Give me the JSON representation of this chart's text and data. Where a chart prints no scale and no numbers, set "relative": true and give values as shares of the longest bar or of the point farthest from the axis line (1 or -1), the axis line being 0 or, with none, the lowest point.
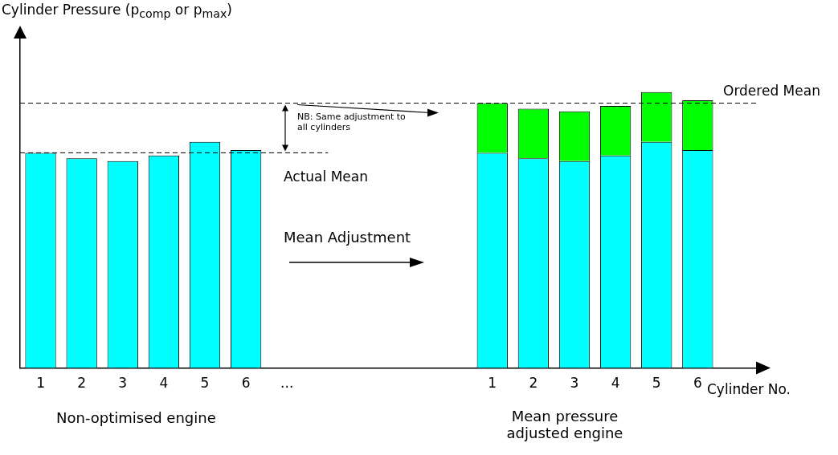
{
  "chart_data": {
    "type": "bar",
    "relative": true,
    "stacked": true,
    "xlabel": "Cylinder No.",
    "categories": [
      "1",
      "2",
      "3",
      "4",
      "5",
      "6",
      "...",
      null,
      null,
      null,
      null,
      "1",
      "2",
      "3",
      "4",
      "5",
      "6",
      "..."
    ],
    "series": [
      {
        "color": "#00ffff",
        "values": [
          0.78,
          0.76,
          0.75,
          0.77,
          0.82,
          0.79,
          null,
          null,
          null,
          null,
          null,
          0.78,
          0.76,
          0.75,
          0.77,
          0.82,
          0.79,
          null
        ]
      },
      {
        "color": "#00ff00",
        "values": [
          null,
          null,
          null,
          null,
          null,
          null,
          null,
          null,
          null,
          null,
          null,
          0.18,
          0.18,
          0.18,
          0.18,
          0.18,
          0.18,
          null
        ]
      }
    ],
    "ref_lines": [
      {
        "axis": "y",
        "value": 0.78,
        "label": "Actual Mean",
        "line_style": "dashed"
      },
      {
        "axis": "y",
        "value": 0.96,
        "label": "Ordered Mean",
        "line_style": "dashed"
      }
    ],
    "annotations": [
      "Cylinder Pressure (p$_{comp}$ or p$_{max}$)",
      "NB: Same adjustment to all cylinders",
      "Mean Adjustment",
      "Non-optimised engine",
      "Mean pressure adjusted engine"
    ],
    "grid": false,
    "legend": false
  }
}
